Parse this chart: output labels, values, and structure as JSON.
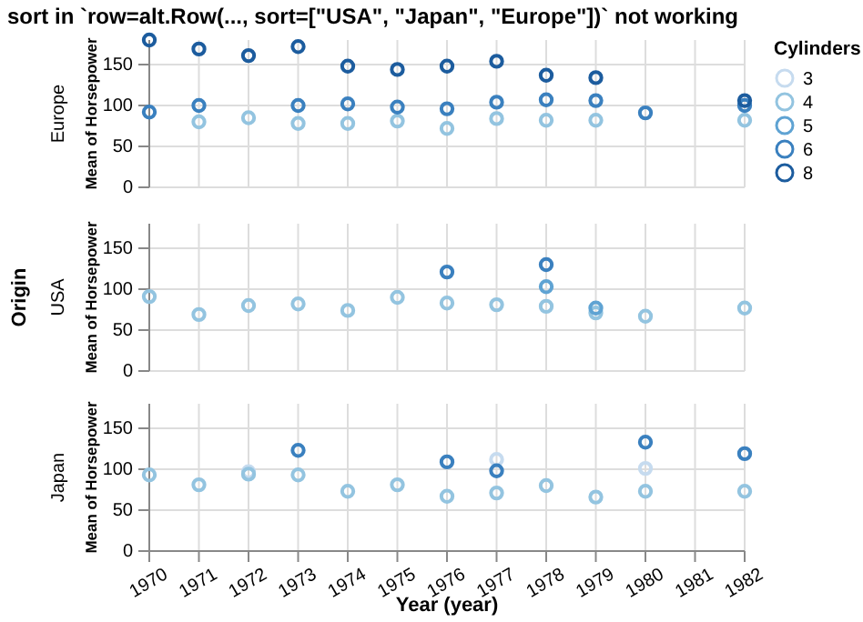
{
  "chart_data": [
    {
      "type": "scatter",
      "title": "sort in `row=alt.Row(..., sort=[\"USA\", \"Japan\", \"Europe\"])` not working",
      "subtitle": "Europe",
      "ylabel": "Mean of Horsepower",
      "legend_title": "Cylinders",
      "legend": "right",
      "marker": "circle",
      "grid": true,
      "tick_labels": "y",
      "xlim": [
        1970,
        1982
      ],
      "xticks": [
        1970,
        1971,
        1972,
        1973,
        1974,
        1975,
        1976,
        1977,
        1978,
        1979,
        1980,
        1981,
        1982
      ],
      "ylim": [
        0,
        180
      ],
      "yticks": [
        0,
        50,
        100,
        150
      ],
      "series": [
        {
          "name": "3",
          "color": "#c6dbef"
        },
        {
          "name": "4",
          "color": "#93c4e0",
          "x": [
            1971,
            1972,
            1973,
            1974,
            1975,
            1976,
            1977,
            1978,
            1979,
            1982
          ],
          "values": [
            80,
            85,
            78,
            78,
            81,
            72,
            84,
            82,
            82,
            82
          ]
        },
        {
          "name": "5",
          "color": "#5fa3d3"
        },
        {
          "name": "6",
          "color": "#3a80bf",
          "x": [
            1970,
            1971,
            1973,
            1974,
            1975,
            1976,
            1977,
            1978,
            1979,
            1980,
            1982
          ],
          "values": [
            92,
            100,
            100,
            102,
            98,
            96,
            104,
            107,
            106,
            91,
            100
          ]
        },
        {
          "name": "8",
          "color": "#1c5c9e",
          "x": [
            1970,
            1971,
            1972,
            1973,
            1974,
            1975,
            1976,
            1977,
            1978,
            1979,
            1982
          ],
          "values": [
            180,
            169,
            161,
            172,
            148,
            144,
            148,
            154,
            137,
            134,
            106
          ]
        }
      ]
    },
    {
      "type": "scatter",
      "subtitle": "USA",
      "ylabel": "Mean of Horsepower",
      "annotations": [
        "Origin"
      ],
      "marker": "circle",
      "grid": true,
      "tick_labels": "y",
      "xlim": [
        1970,
        1982
      ],
      "xticks": [
        1970,
        1971,
        1972,
        1973,
        1974,
        1975,
        1976,
        1977,
        1978,
        1979,
        1980,
        1981,
        1982
      ],
      "ylim": [
        0,
        180
      ],
      "yticks": [
        0,
        50,
        100,
        150
      ],
      "series": [
        {
          "color": "#93c4e0",
          "x": [
            1970,
            1971,
            1972,
            1973,
            1974,
            1975,
            1976,
            1977,
            1978,
            1979,
            1980,
            1982
          ],
          "values": [
            91,
            69,
            80,
            82,
            74,
            90,
            83,
            81,
            79,
            71,
            67,
            77
          ]
        },
        {
          "color": "#5fa3d3",
          "x": [
            1978,
            1979
          ],
          "values": [
            103,
            77
          ]
        },
        {
          "color": "#3a80bf",
          "x": [
            1976,
            1978
          ],
          "values": [
            121,
            130
          ]
        }
      ]
    },
    {
      "type": "scatter",
      "subtitle": "Japan",
      "ylabel": "Mean of Horsepower",
      "xlabel": "Year (year)",
      "marker": "circle",
      "grid": true,
      "xlim": [
        1970,
        1982
      ],
      "xticks": [
        1970,
        1971,
        1972,
        1973,
        1974,
        1975,
        1976,
        1977,
        1978,
        1979,
        1980,
        1981,
        1982
      ],
      "ylim": [
        0,
        180
      ],
      "yticks": [
        0,
        50,
        100,
        150
      ],
      "series": [
        {
          "color": "#c6dbef",
          "x": [
            1972,
            1977,
            1980
          ],
          "values": [
            97,
            112,
            101
          ]
        },
        {
          "color": "#93c4e0",
          "x": [
            1970,
            1971,
            1972,
            1973,
            1974,
            1975,
            1976,
            1977,
            1978,
            1979,
            1980,
            1982
          ],
          "values": [
            93,
            81,
            94,
            93,
            73,
            81,
            67,
            71,
            80,
            66,
            73,
            73
          ]
        },
        {
          "color": "#3a80bf",
          "x": [
            1973,
            1976,
            1977,
            1980,
            1982
          ],
          "values": [
            123,
            109,
            98,
            133,
            119
          ]
        }
      ]
    }
  ]
}
